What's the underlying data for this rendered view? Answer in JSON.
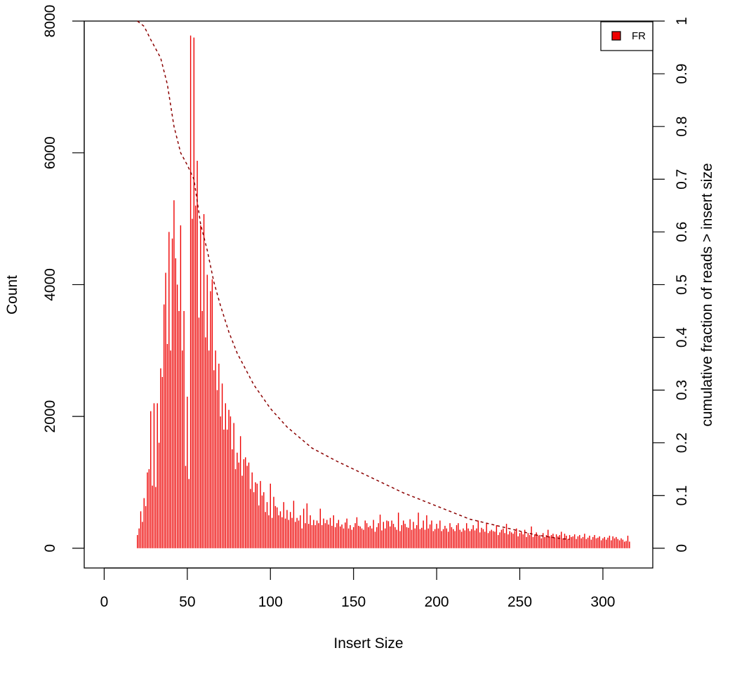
{
  "chart_data": {
    "type": "bar",
    "title": "",
    "xlabel": "Insert Size",
    "ylabel": "Count",
    "y2label": "cumulative fraction of reads > insert size",
    "xlim": [
      -12,
      330
    ],
    "ylim": [
      -300,
      8000
    ],
    "y2lim": [
      -0.0375,
      1.0
    ],
    "x_ticks": [
      0,
      50,
      100,
      150,
      200,
      250,
      300
    ],
    "y_ticks": [
      0,
      2000,
      4000,
      6000,
      8000
    ],
    "y2_ticks": [
      0,
      0.1,
      0.2,
      0.3,
      0.4,
      0.5,
      0.6,
      0.7,
      0.8,
      0.9,
      1
    ],
    "legend": {
      "position": "top-right",
      "entries": [
        {
          "label": "FR",
          "color": "#ee0000"
        }
      ]
    },
    "colors": {
      "bars": "#ee0000",
      "cumulative_line": "#8b0000"
    },
    "series": [
      {
        "name": "FR",
        "style": "histogram",
        "points": [
          [
            20,
            200
          ],
          [
            21,
            300
          ],
          [
            22,
            560
          ],
          [
            23,
            400
          ],
          [
            24,
            760
          ],
          [
            25,
            640
          ],
          [
            26,
            1150
          ],
          [
            27,
            1200
          ],
          [
            28,
            2080
          ],
          [
            29,
            950
          ],
          [
            30,
            2200
          ],
          [
            31,
            930
          ],
          [
            32,
            2200
          ],
          [
            33,
            1600
          ],
          [
            34,
            2730
          ],
          [
            35,
            2600
          ],
          [
            36,
            3700
          ],
          [
            37,
            4180
          ],
          [
            38,
            3100
          ],
          [
            39,
            4800
          ],
          [
            40,
            3000
          ],
          [
            41,
            4700
          ],
          [
            42,
            5280
          ],
          [
            43,
            4400
          ],
          [
            44,
            4000
          ],
          [
            45,
            3600
          ],
          [
            46,
            4900
          ],
          [
            47,
            3000
          ],
          [
            48,
            3600
          ],
          [
            49,
            1250
          ],
          [
            50,
            2300
          ],
          [
            51,
            1050
          ],
          [
            52,
            7780
          ],
          [
            53,
            5000
          ],
          [
            54,
            7750
          ],
          [
            55,
            5200
          ],
          [
            56,
            5880
          ],
          [
            57,
            3500
          ],
          [
            58,
            4900
          ],
          [
            59,
            3600
          ],
          [
            60,
            5070
          ],
          [
            61,
            3200
          ],
          [
            62,
            4150
          ],
          [
            63,
            3000
          ],
          [
            64,
            3900
          ],
          [
            65,
            4080
          ],
          [
            66,
            2700
          ],
          [
            67,
            3000
          ],
          [
            68,
            2400
          ],
          [
            69,
            2800
          ],
          [
            70,
            2000
          ],
          [
            71,
            2500
          ],
          [
            72,
            1800
          ],
          [
            73,
            2200
          ],
          [
            74,
            1800
          ],
          [
            75,
            2100
          ],
          [
            76,
            2000
          ],
          [
            77,
            1500
          ],
          [
            78,
            1900
          ],
          [
            79,
            1200
          ],
          [
            80,
            1450
          ],
          [
            81,
            1300
          ],
          [
            82,
            1700
          ],
          [
            83,
            1100
          ],
          [
            84,
            1350
          ],
          [
            85,
            1380
          ],
          [
            86,
            1250
          ],
          [
            87,
            1300
          ],
          [
            88,
            900
          ],
          [
            89,
            1150
          ],
          [
            90,
            850
          ],
          [
            91,
            1000
          ],
          [
            92,
            980
          ],
          [
            93,
            650
          ],
          [
            94,
            1020
          ],
          [
            95,
            800
          ],
          [
            96,
            850
          ],
          [
            97,
            550
          ],
          [
            98,
            700
          ],
          [
            99,
            500
          ],
          [
            100,
            980
          ],
          [
            101,
            460
          ],
          [
            102,
            780
          ],
          [
            103,
            640
          ],
          [
            104,
            620
          ],
          [
            105,
            500
          ],
          [
            106,
            560
          ],
          [
            107,
            470
          ],
          [
            108,
            700
          ],
          [
            109,
            450
          ],
          [
            110,
            580
          ],
          [
            111,
            430
          ],
          [
            112,
            550
          ],
          [
            113,
            460
          ],
          [
            114,
            720
          ],
          [
            115,
            400
          ],
          [
            116,
            460
          ],
          [
            117,
            420
          ],
          [
            118,
            500
          ],
          [
            119,
            300
          ],
          [
            120,
            600
          ],
          [
            121,
            380
          ],
          [
            122,
            680
          ],
          [
            123,
            370
          ],
          [
            124,
            500
          ],
          [
            125,
            350
          ],
          [
            126,
            430
          ],
          [
            127,
            350
          ],
          [
            128,
            420
          ],
          [
            129,
            380
          ],
          [
            130,
            600
          ],
          [
            131,
            350
          ],
          [
            132,
            450
          ],
          [
            133,
            380
          ],
          [
            134,
            430
          ],
          [
            135,
            360
          ],
          [
            136,
            460
          ],
          [
            137,
            340
          ],
          [
            138,
            500
          ],
          [
            139,
            320
          ],
          [
            140,
            380
          ],
          [
            141,
            430
          ],
          [
            142,
            330
          ],
          [
            143,
            360
          ],
          [
            144,
            300
          ],
          [
            145,
            390
          ],
          [
            146,
            450
          ],
          [
            147,
            300
          ],
          [
            148,
            350
          ],
          [
            149,
            280
          ],
          [
            150,
            320
          ],
          [
            151,
            380
          ],
          [
            152,
            470
          ],
          [
            153,
            340
          ],
          [
            154,
            330
          ],
          [
            155,
            300
          ],
          [
            156,
            280
          ],
          [
            157,
            420
          ],
          [
            158,
            380
          ],
          [
            159,
            320
          ],
          [
            160,
            340
          ],
          [
            161,
            300
          ],
          [
            162,
            430
          ],
          [
            163,
            250
          ],
          [
            164,
            320
          ],
          [
            165,
            380
          ],
          [
            166,
            510
          ],
          [
            167,
            270
          ],
          [
            168,
            400
          ],
          [
            169,
            300
          ],
          [
            170,
            420
          ],
          [
            171,
            410
          ],
          [
            172,
            330
          ],
          [
            173,
            420
          ],
          [
            174,
            370
          ],
          [
            175,
            320
          ],
          [
            176,
            280
          ],
          [
            177,
            540
          ],
          [
            178,
            260
          ],
          [
            179,
            350
          ],
          [
            180,
            420
          ],
          [
            181,
            370
          ],
          [
            182,
            320
          ],
          [
            183,
            310
          ],
          [
            184,
            440
          ],
          [
            185,
            280
          ],
          [
            186,
            400
          ],
          [
            187,
            300
          ],
          [
            188,
            350
          ],
          [
            189,
            540
          ],
          [
            190,
            290
          ],
          [
            191,
            310
          ],
          [
            192,
            420
          ],
          [
            193,
            280
          ],
          [
            194,
            500
          ],
          [
            195,
            300
          ],
          [
            196,
            360
          ],
          [
            197,
            420
          ],
          [
            198,
            260
          ],
          [
            199,
            290
          ],
          [
            200,
            370
          ],
          [
            201,
            300
          ],
          [
            202,
            420
          ],
          [
            203,
            260
          ],
          [
            204,
            290
          ],
          [
            205,
            340
          ],
          [
            206,
            300
          ],
          [
            207,
            250
          ],
          [
            208,
            380
          ],
          [
            209,
            320
          ],
          [
            210,
            290
          ],
          [
            211,
            260
          ],
          [
            212,
            350
          ],
          [
            213,
            380
          ],
          [
            214,
            280
          ],
          [
            215,
            250
          ],
          [
            216,
            300
          ],
          [
            217,
            270
          ],
          [
            218,
            380
          ],
          [
            219,
            300
          ],
          [
            220,
            260
          ],
          [
            221,
            290
          ],
          [
            222,
            350
          ],
          [
            223,
            270
          ],
          [
            224,
            300
          ],
          [
            225,
            420
          ],
          [
            226,
            240
          ],
          [
            227,
            310
          ],
          [
            228,
            290
          ],
          [
            229,
            250
          ],
          [
            230,
            380
          ],
          [
            231,
            230
          ],
          [
            232,
            260
          ],
          [
            233,
            280
          ],
          [
            234,
            260
          ],
          [
            235,
            250
          ],
          [
            236,
            350
          ],
          [
            237,
            200
          ],
          [
            238,
            240
          ],
          [
            239,
            280
          ],
          [
            240,
            300
          ],
          [
            241,
            230
          ],
          [
            242,
            370
          ],
          [
            243,
            210
          ],
          [
            244,
            260
          ],
          [
            245,
            240
          ],
          [
            246,
            220
          ],
          [
            247,
            260
          ],
          [
            248,
            300
          ],
          [
            249,
            180
          ],
          [
            250,
            230
          ],
          [
            251,
            250
          ],
          [
            252,
            210
          ],
          [
            253,
            280
          ],
          [
            254,
            170
          ],
          [
            255,
            230
          ],
          [
            256,
            200
          ],
          [
            257,
            330
          ],
          [
            258,
            170
          ],
          [
            259,
            210
          ],
          [
            260,
            240
          ],
          [
            261,
            190
          ],
          [
            262,
            200
          ],
          [
            263,
            150
          ],
          [
            264,
            230
          ],
          [
            265,
            170
          ],
          [
            266,
            200
          ],
          [
            267,
            280
          ],
          [
            268,
            180
          ],
          [
            269,
            200
          ],
          [
            270,
            220
          ],
          [
            271,
            160
          ],
          [
            272,
            210
          ],
          [
            273,
            180
          ],
          [
            274,
            200
          ],
          [
            275,
            250
          ],
          [
            276,
            150
          ],
          [
            277,
            220
          ],
          [
            278,
            190
          ],
          [
            279,
            140
          ],
          [
            280,
            200
          ],
          [
            281,
            170
          ],
          [
            282,
            180
          ],
          [
            283,
            210
          ],
          [
            284,
            140
          ],
          [
            285,
            180
          ],
          [
            286,
            200
          ],
          [
            287,
            150
          ],
          [
            288,
            170
          ],
          [
            289,
            220
          ],
          [
            290,
            140
          ],
          [
            291,
            160
          ],
          [
            292,
            190
          ],
          [
            293,
            130
          ],
          [
            294,
            170
          ],
          [
            295,
            200
          ],
          [
            296,
            150
          ],
          [
            297,
            160
          ],
          [
            298,
            180
          ],
          [
            299,
            120
          ],
          [
            300,
            150
          ],
          [
            301,
            170
          ],
          [
            302,
            130
          ],
          [
            303,
            160
          ],
          [
            304,
            190
          ],
          [
            305,
            120
          ],
          [
            306,
            180
          ],
          [
            307,
            150
          ],
          [
            308,
            170
          ],
          [
            309,
            140
          ],
          [
            310,
            120
          ],
          [
            311,
            150
          ],
          [
            312,
            130
          ],
          [
            313,
            100
          ],
          [
            314,
            110
          ],
          [
            315,
            190
          ],
          [
            316,
            100
          ]
        ]
      },
      {
        "name": "",
        "style": "dashed-line",
        "axis": "right",
        "points": [
          [
            20,
            1.0
          ],
          [
            24,
            0.99
          ],
          [
            28,
            0.965
          ],
          [
            34,
            0.93
          ],
          [
            38,
            0.88
          ],
          [
            42,
            0.8
          ],
          [
            46,
            0.75
          ],
          [
            50,
            0.727
          ],
          [
            54,
            0.7
          ],
          [
            58,
            0.615
          ],
          [
            62,
            0.565
          ],
          [
            66,
            0.505
          ],
          [
            70,
            0.46
          ],
          [
            75,
            0.41
          ],
          [
            80,
            0.37
          ],
          [
            90,
            0.31
          ],
          [
            100,
            0.265
          ],
          [
            110,
            0.23
          ],
          [
            125,
            0.19
          ],
          [
            140,
            0.165
          ],
          [
            160,
            0.135
          ],
          [
            180,
            0.105
          ],
          [
            200,
            0.08
          ],
          [
            220,
            0.055
          ],
          [
            240,
            0.04
          ],
          [
            260,
            0.025
          ],
          [
            275,
            0.018
          ],
          [
            280,
            0.017
          ]
        ]
      }
    ]
  }
}
